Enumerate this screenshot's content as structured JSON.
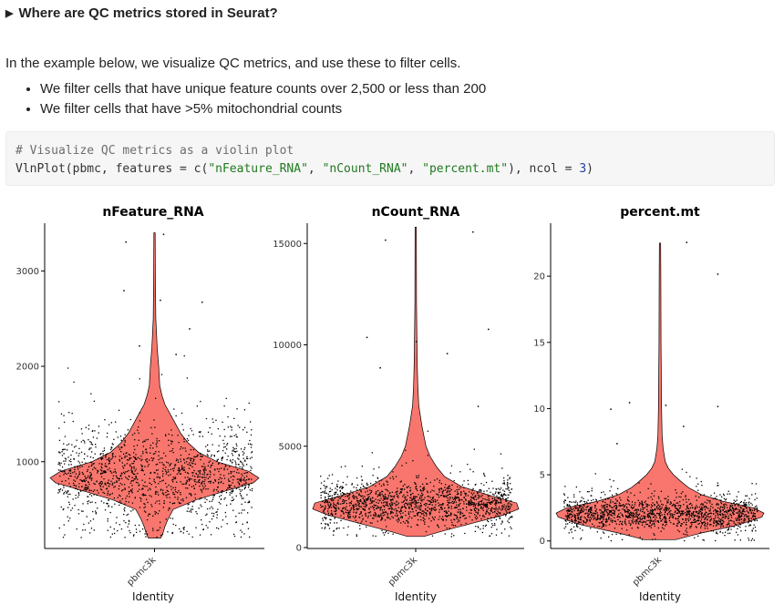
{
  "summary": {
    "label": "Where are QC metrics stored in Seurat?"
  },
  "intro": "In the example below, we visualize QC metrics, and use these to filter cells.",
  "bullets": [
    "We filter cells that have unique feature counts over 2,500 or less than 200",
    "We filter cells that have >5% mitochondrial counts"
  ],
  "code": {
    "comment": "# Visualize QC metrics as a violin plot",
    "call_prefix": "VlnPlot(pbmc, features = c(",
    "arg1": "\"nFeature_RNA\"",
    "sep1": ", ",
    "arg2": "\"nCount_RNA\"",
    "sep2": ", ",
    "arg3": "\"percent.mt\"",
    "mid": "), ncol = ",
    "ncol": "3",
    "close": ")"
  },
  "colors": {
    "violin_fill": "#f8766d",
    "points": "#000000",
    "axis": "#000000"
  },
  "chart_data": [
    {
      "type": "violin",
      "title": "nFeature_RNA",
      "xlabel": "Identity",
      "categories": [
        "pbmc3k"
      ],
      "yticks": [
        1000,
        2000,
        3000
      ],
      "ylim": [
        100,
        3500
      ],
      "violin_profile": [
        [
          200,
          0.06
        ],
        [
          250,
          0.08
        ],
        [
          320,
          0.1
        ],
        [
          400,
          0.13
        ],
        [
          500,
          0.18
        ],
        [
          600,
          0.4
        ],
        [
          700,
          0.7
        ],
        [
          780,
          0.95
        ],
        [
          830,
          1.0
        ],
        [
          900,
          0.9
        ],
        [
          1000,
          0.6
        ],
        [
          1100,
          0.42
        ],
        [
          1200,
          0.32
        ],
        [
          1300,
          0.25
        ],
        [
          1400,
          0.2
        ],
        [
          1500,
          0.15
        ],
        [
          1600,
          0.1
        ],
        [
          1700,
          0.07
        ],
        [
          1800,
          0.05
        ],
        [
          2000,
          0.04
        ],
        [
          2200,
          0.025
        ],
        [
          2500,
          0.012
        ],
        [
          3000,
          0.008
        ],
        [
          3400,
          0.006
        ]
      ],
      "outliers": [
        [
          -0.28,
          3310
        ],
        [
          0.08,
          3390
        ],
        [
          0.05,
          2700
        ],
        [
          0.45,
          2680
        ],
        [
          -0.3,
          2800
        ],
        [
          0.33,
          2400
        ],
        [
          -0.15,
          2220
        ],
        [
          0.2,
          2130
        ]
      ],
      "points": {
        "count": 1500,
        "median": 850,
        "spread": 380,
        "min": 210,
        "max": 2150
      }
    },
    {
      "type": "violin",
      "title": "nCount_RNA",
      "xlabel": "Identity",
      "categories": [
        "pbmc3k"
      ],
      "yticks": [
        0,
        5000,
        10000,
        15000
      ],
      "ylim": [
        0,
        16000
      ],
      "violin_profile": [
        [
          550,
          0.08
        ],
        [
          800,
          0.25
        ],
        [
          1200,
          0.55
        ],
        [
          1600,
          0.85
        ],
        [
          1900,
          1.0
        ],
        [
          2200,
          0.98
        ],
        [
          2600,
          0.7
        ],
        [
          3000,
          0.45
        ],
        [
          3500,
          0.28
        ],
        [
          4000,
          0.2
        ],
        [
          4500,
          0.14
        ],
        [
          5000,
          0.1
        ],
        [
          5500,
          0.08
        ],
        [
          6000,
          0.06
        ],
        [
          6500,
          0.045
        ],
        [
          7000,
          0.03
        ],
        [
          8000,
          0.02
        ],
        [
          9000,
          0.015
        ],
        [
          10000,
          0.012
        ],
        [
          12000,
          0.008
        ],
        [
          15800,
          0.006
        ]
      ],
      "outliers": [
        [
          -0.3,
          15200
        ],
        [
          0.55,
          15600
        ],
        [
          0.7,
          10800
        ],
        [
          -0.48,
          10400
        ],
        [
          0.0,
          10200
        ],
        [
          0.3,
          9600
        ],
        [
          -0.35,
          8900
        ],
        [
          0.6,
          7000
        ]
      ],
      "points": {
        "count": 1500,
        "median": 2200,
        "spread": 900,
        "min": 560,
        "max": 7500
      }
    },
    {
      "type": "violin",
      "title": "percent.mt",
      "xlabel": "Identity",
      "categories": [
        "pbmc3k"
      ],
      "yticks": [
        0,
        5,
        10,
        15,
        20
      ],
      "ylim": [
        -0.5,
        24
      ],
      "violin_profile": [
        [
          0.1,
          0.15
        ],
        [
          0.6,
          0.4
        ],
        [
          1.2,
          0.75
        ],
        [
          1.8,
          0.98
        ],
        [
          2.1,
          1.0
        ],
        [
          2.5,
          0.9
        ],
        [
          3.0,
          0.6
        ],
        [
          3.5,
          0.4
        ],
        [
          4.0,
          0.28
        ],
        [
          4.5,
          0.2
        ],
        [
          5.0,
          0.13
        ],
        [
          5.5,
          0.08
        ],
        [
          6.0,
          0.05
        ],
        [
          7.0,
          0.03
        ],
        [
          8.0,
          0.02
        ],
        [
          10.0,
          0.015
        ],
        [
          15.0,
          0.01
        ],
        [
          20.0,
          0.008
        ],
        [
          22.5,
          0.006
        ]
      ],
      "outliers": [
        [
          0.25,
          22.6
        ],
        [
          0.55,
          20.2
        ],
        [
          -0.3,
          10.5
        ],
        [
          0.05,
          10.3
        ],
        [
          0.55,
          10.2
        ],
        [
          -0.48,
          10.0
        ],
        [
          0.22,
          8.7
        ],
        [
          -0.42,
          7.4
        ]
      ],
      "points": {
        "count": 1500,
        "median": 2.1,
        "spread": 1.0,
        "min": 0.05,
        "max": 7.0
      }
    }
  ]
}
